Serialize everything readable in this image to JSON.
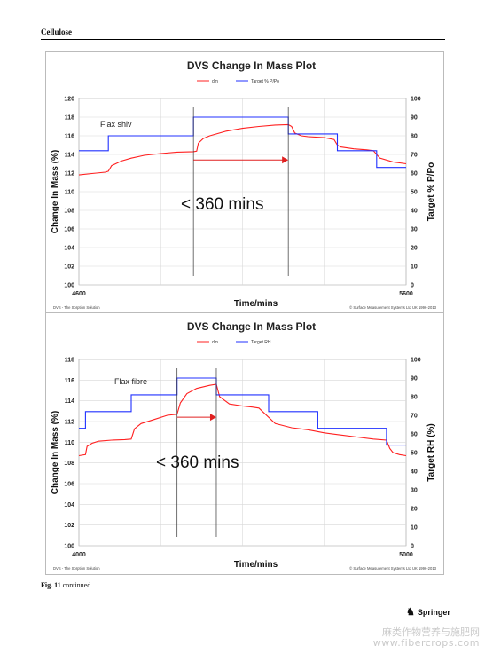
{
  "running_head": "Cellulose",
  "caption": {
    "label": "Fig. 11",
    "text": "continued"
  },
  "publisher": "Springer",
  "watermark": {
    "line1": "麻类作物营养与施肥网",
    "line2": "www.fibercrops.com"
  },
  "chart_data": [
    {
      "type": "line",
      "title": "DVS Change In Mass Plot",
      "legend": [
        "dm",
        "Target % P/Po"
      ],
      "xlabel": "Time/mins",
      "ylabel": "Change In Mass (%)",
      "y2label": "Target % P/Po",
      "xlim": [
        4600,
        5600
      ],
      "ylim": [
        100,
        120
      ],
      "y2lim": [
        0,
        100
      ],
      "x_ticks": [
        "4600",
        "5600"
      ],
      "y_ticks": [
        "100",
        "102",
        "104",
        "106",
        "108",
        "110",
        "112",
        "114",
        "116",
        "118",
        "120"
      ],
      "y2_ticks": [
        "0",
        "10",
        "20",
        "30",
        "40",
        "50",
        "60",
        "70",
        "80",
        "90",
        "100"
      ],
      "annotations": [
        "Flax shiv",
        "< 360 mins"
      ],
      "footer_left": "DVS - The Sorption Solution",
      "footer_right": "© Surface Measurement Systems Ltd UK 1996-2013",
      "colors": {
        "dm": "#ff2020",
        "target": "#2030ff"
      },
      "series": [
        {
          "name": "dm",
          "axis": "left",
          "x": [
            4600,
            4640,
            4680,
            4690,
            4700,
            4730,
            4760,
            4800,
            4850,
            4900,
            4950,
            4960,
            4965,
            4980,
            5000,
            5050,
            5100,
            5150,
            5200,
            5240,
            5250,
            5260,
            5280,
            5300,
            5350,
            5380,
            5390,
            5400,
            5440,
            5480,
            5500,
            5520,
            5560,
            5600
          ],
          "y": [
            111.8,
            111.95,
            112.1,
            112.2,
            112.8,
            113.3,
            113.6,
            113.9,
            114.1,
            114.25,
            114.3,
            114.35,
            115.2,
            115.7,
            116.0,
            116.5,
            116.8,
            117.0,
            117.15,
            117.2,
            117.0,
            116.3,
            116.0,
            115.9,
            115.8,
            115.6,
            115.0,
            114.8,
            114.6,
            114.5,
            114.4,
            113.6,
            113.2,
            113.0
          ]
        },
        {
          "name": "Target % P/Po",
          "axis": "right",
          "x": [
            4600,
            4690,
            4690,
            4950,
            4950,
            5240,
            5240,
            5390,
            5390,
            5510,
            5510,
            5600
          ],
          "y": [
            72,
            72,
            80,
            80,
            90,
            90,
            81,
            81,
            72,
            72,
            63,
            63
          ]
        }
      ]
    },
    {
      "type": "line",
      "title": "DVS Change In Mass Plot",
      "legend": [
        "dm",
        "Target RH"
      ],
      "xlabel": "Time/mins",
      "ylabel": "Change In Mass (%)",
      "y2label": "Target RH (%)",
      "xlim": [
        4000,
        5000
      ],
      "ylim": [
        100,
        118
      ],
      "y2lim": [
        0,
        100
      ],
      "x_ticks": [
        "4000",
        "5000"
      ],
      "y_ticks": [
        "100",
        "102",
        "104",
        "106",
        "108",
        "110",
        "112",
        "114",
        "116",
        "118"
      ],
      "y2_ticks": [
        "0",
        "10",
        "20",
        "30",
        "40",
        "50",
        "60",
        "70",
        "80",
        "90",
        "100"
      ],
      "annotations": [
        "Flax fibre",
        "< 360 mins"
      ],
      "footer_left": "DVS - The Sorption Solution",
      "footer_right": "© Surface Measurement Systems Ltd UK 1996-2013",
      "colors": {
        "dm": "#ff2020",
        "target": "#2030ff"
      },
      "series": [
        {
          "name": "dm",
          "axis": "left",
          "x": [
            4000,
            4020,
            4025,
            4040,
            4060,
            4100,
            4140,
            4160,
            4170,
            4190,
            4230,
            4270,
            4300,
            4310,
            4330,
            4360,
            4400,
            4420,
            4430,
            4460,
            4500,
            4530,
            4550,
            4600,
            4650,
            4700,
            4750,
            4800,
            4850,
            4900,
            4940,
            4950,
            4960,
            4980,
            5000
          ],
          "y": [
            108.7,
            108.8,
            109.6,
            109.9,
            110.1,
            110.2,
            110.25,
            110.3,
            111.3,
            111.8,
            112.2,
            112.6,
            112.7,
            113.8,
            114.7,
            115.2,
            115.5,
            115.6,
            114.4,
            113.7,
            113.5,
            113.4,
            113.3,
            111.8,
            111.4,
            111.2,
            110.9,
            110.7,
            110.5,
            110.3,
            110.2,
            109.4,
            109.0,
            108.8,
            108.7
          ]
        },
        {
          "name": "Target RH",
          "axis": "right",
          "x": [
            4000,
            4020,
            4020,
            4160,
            4160,
            4300,
            4300,
            4420,
            4420,
            4580,
            4580,
            4730,
            4730,
            4940,
            4940,
            5000
          ],
          "y": [
            63,
            63,
            72,
            72,
            81,
            81,
            90,
            90,
            81,
            81,
            72,
            72,
            63,
            63,
            54,
            54
          ]
        }
      ]
    }
  ]
}
